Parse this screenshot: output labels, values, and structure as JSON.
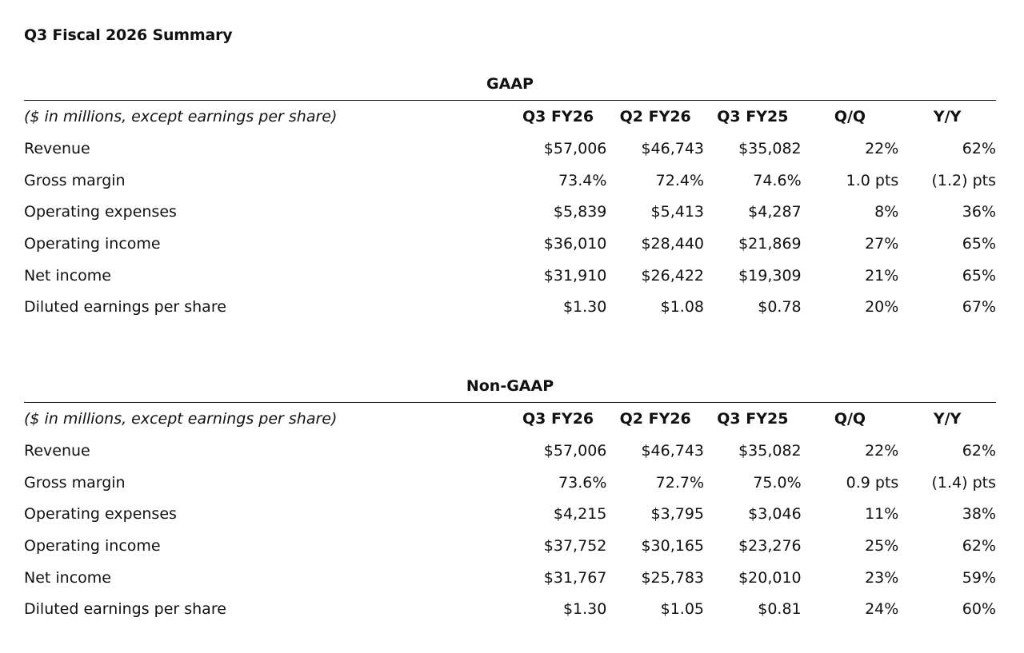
{
  "page": {
    "title": "Q3 Fiscal 2026 Summary"
  },
  "sections": [
    {
      "title": "GAAP",
      "header": {
        "units_note": "($ in millions, except earnings per share)",
        "columns": [
          "Q3 FY26",
          "Q2 FY26",
          "Q3 FY25",
          "Q/Q",
          "Y/Y"
        ]
      },
      "rows": [
        {
          "label": "Revenue",
          "values": [
            "$57,006",
            "$46,743",
            "$35,082",
            "22%",
            "62%"
          ]
        },
        {
          "label": "Gross margin",
          "values": [
            "73.4%",
            "72.4%",
            "74.6%",
            "1.0 pts",
            "(1.2) pts"
          ]
        },
        {
          "label": "Operating expenses",
          "values": [
            "$5,839",
            "$5,413",
            "$4,287",
            "8%",
            "36%"
          ]
        },
        {
          "label": "Operating income",
          "values": [
            "$36,010",
            "$28,440",
            "$21,869",
            "27%",
            "65%"
          ]
        },
        {
          "label": "Net income",
          "values": [
            "$31,910",
            "$26,422",
            "$19,309",
            "21%",
            "65%"
          ]
        },
        {
          "label": "Diluted earnings per share",
          "values": [
            "$1.30",
            "$1.08",
            "$0.78",
            "20%",
            "67%"
          ]
        }
      ]
    },
    {
      "title": "Non-GAAP",
      "header": {
        "units_note": "($ in millions, except earnings per share)",
        "columns": [
          "Q3 FY26",
          "Q2 FY26",
          "Q3 FY25",
          "Q/Q",
          "Y/Y"
        ]
      },
      "rows": [
        {
          "label": "Revenue",
          "values": [
            "$57,006",
            "$46,743",
            "$35,082",
            "22%",
            "62%"
          ]
        },
        {
          "label": "Gross margin",
          "values": [
            "73.6%",
            "72.7%",
            "75.0%",
            "0.9 pts",
            "(1.4) pts"
          ]
        },
        {
          "label": "Operating expenses",
          "values": [
            "$4,215",
            "$3,795",
            "$3,046",
            "11%",
            "38%"
          ]
        },
        {
          "label": "Operating income",
          "values": [
            "$37,752",
            "$30,165",
            "$23,276",
            "25%",
            "62%"
          ]
        },
        {
          "label": "Net income",
          "values": [
            "$31,767",
            "$25,783",
            "$20,010",
            "23%",
            "59%"
          ]
        },
        {
          "label": "Diluted earnings per share",
          "values": [
            "$1.30",
            "$1.05",
            "$0.81",
            "24%",
            "60%"
          ]
        }
      ]
    }
  ]
}
